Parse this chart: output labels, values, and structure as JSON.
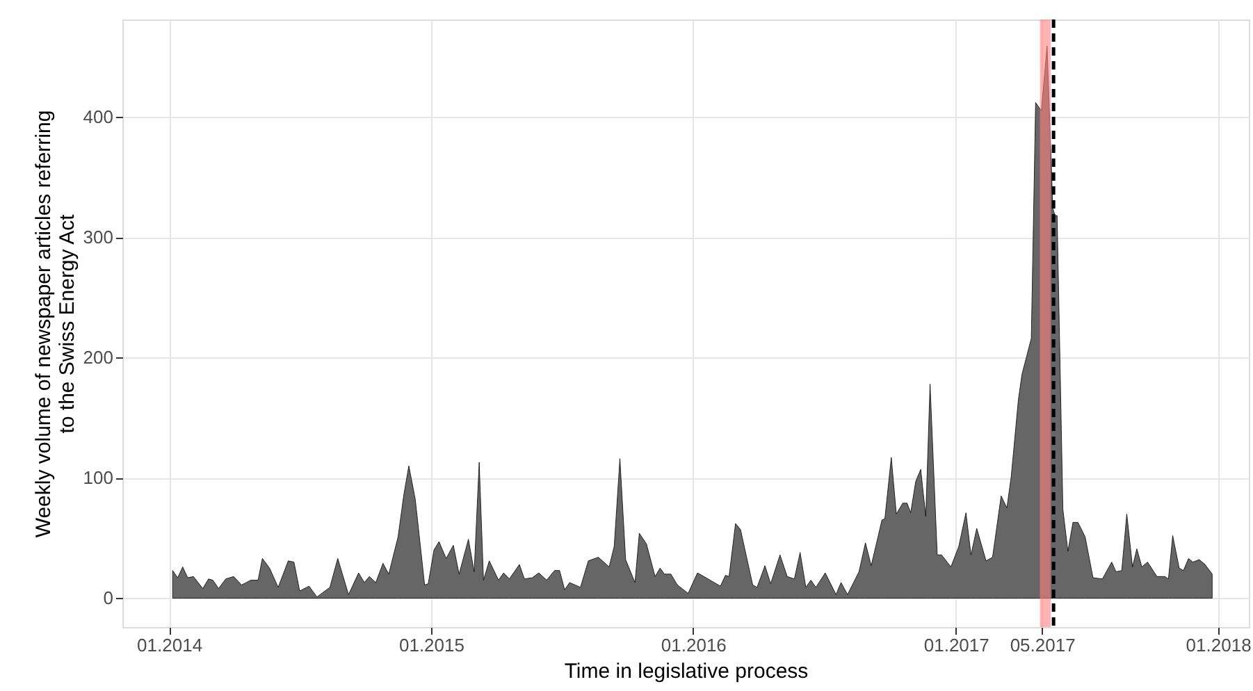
{
  "chart_data": {
    "type": "area",
    "xlabel": "Time in legislative process",
    "ylabel": "Weekly volume of newspaper articles referring\nto the Swiss Energy Act",
    "x": [
      "2014-01-06",
      "2014-01-13",
      "2014-01-20",
      "2014-01-27",
      "2014-02-04",
      "2014-02-17",
      "2014-02-25",
      "2014-03-03",
      "2014-03-11",
      "2014-03-21",
      "2014-04-01",
      "2014-04-12",
      "2014-04-25",
      "2014-05-05",
      "2014-05-11",
      "2014-05-21",
      "2014-06-02",
      "2014-06-16",
      "2014-06-24",
      "2014-07-02",
      "2014-07-15",
      "2014-07-26",
      "2014-08-13",
      "2014-08-24",
      "2014-09-08",
      "2014-09-22",
      "2014-09-30",
      "2014-10-07",
      "2014-10-16",
      "2014-10-26",
      "2014-11-03",
      "2014-11-16",
      "2014-11-24",
      "2014-12-01",
      "2014-12-10",
      "2014-12-23",
      "2014-12-28",
      "2015-01-05",
      "2015-01-12",
      "2015-01-22",
      "2015-02-01",
      "2015-02-09",
      "2015-02-22",
      "2015-03-02",
      "2015-03-09",
      "2015-03-15",
      "2015-03-23",
      "2015-04-05",
      "2015-04-12",
      "2015-04-20",
      "2015-05-04",
      "2015-05-11",
      "2015-05-22",
      "2015-05-31",
      "2015-06-11",
      "2015-06-22",
      "2015-06-29",
      "2015-07-06",
      "2015-07-13",
      "2015-07-28",
      "2015-08-08",
      "2015-08-22",
      "2015-09-06",
      "2015-09-13",
      "2015-09-21",
      "2015-09-29",
      "2015-10-12",
      "2015-10-18",
      "2015-10-28",
      "2015-11-09",
      "2015-11-16",
      "2015-11-22",
      "2015-12-01",
      "2015-12-10",
      "2015-12-25",
      "2016-01-07",
      "2016-01-16",
      "2016-02-08",
      "2016-02-15",
      "2016-02-20",
      "2016-02-29",
      "2016-03-07",
      "2016-03-24",
      "2016-03-30",
      "2016-04-10",
      "2016-04-18",
      "2016-05-01",
      "2016-05-11",
      "2016-05-21",
      "2016-05-29",
      "2016-06-06",
      "2016-06-13",
      "2016-06-20",
      "2016-07-03",
      "2016-07-18",
      "2016-07-25",
      "2016-08-03",
      "2016-08-19",
      "2016-08-28",
      "2016-09-05",
      "2016-09-20",
      "2016-09-24",
      "2016-10-03",
      "2016-10-10",
      "2016-10-19",
      "2016-10-25",
      "2016-10-30",
      "2016-11-06",
      "2016-11-13",
      "2016-11-20",
      "2016-11-26",
      "2016-12-06",
      "2016-12-12",
      "2016-12-25",
      "2017-01-05",
      "2017-01-15",
      "2017-01-22",
      "2017-01-30",
      "2017-02-12",
      "2017-02-21",
      "2017-03-05",
      "2017-03-13",
      "2017-03-19",
      "2017-03-29",
      "2017-04-03",
      "2017-04-16",
      "2017-04-22",
      "2017-04-30",
      "2017-05-08",
      "2017-05-16",
      "2017-05-19",
      "2017-05-22",
      "2017-05-30",
      "2017-06-06",
      "2017-06-13",
      "2017-06-20",
      "2017-06-30",
      "2017-07-11",
      "2017-07-24",
      "2017-08-06",
      "2017-08-12",
      "2017-08-20",
      "2017-08-27",
      "2017-09-04",
      "2017-09-10",
      "2017-09-17",
      "2017-09-25",
      "2017-10-08",
      "2017-10-19",
      "2017-10-24",
      "2017-10-30",
      "2017-11-08",
      "2017-11-14",
      "2017-11-21",
      "2017-11-27",
      "2017-12-06",
      "2017-12-14",
      "2017-12-24"
    ],
    "series": [
      {
        "color": "#666666",
        "values": [
          23,
          17,
          26,
          17,
          18,
          8,
          16,
          15,
          8,
          16,
          18,
          11,
          15,
          15,
          33,
          25,
          9,
          31,
          30,
          6,
          10,
          1,
          9,
          33,
          3,
          21,
          13,
          18,
          13,
          29,
          20,
          51,
          86,
          110,
          82,
          11,
          12,
          40,
          47,
          33,
          44,
          20,
          49,
          22,
          113,
          15,
          31,
          15,
          21,
          16,
          28,
          16,
          17,
          21,
          15,
          23,
          23,
          7,
          13,
          9,
          31,
          34,
          26,
          43,
          116,
          32,
          13,
          54,
          45,
          18,
          25,
          20,
          20,
          11,
          4,
          21,
          18,
          10,
          19,
          18,
          62,
          57,
          11,
          9,
          27,
          12,
          36,
          18,
          16,
          38,
          9,
          15,
          9,
          21,
          3,
          13,
          3,
          22,
          46,
          27,
          65,
          66,
          117,
          70,
          79,
          79,
          71,
          97,
          107,
          68,
          178,
          36,
          36,
          26,
          43,
          71,
          36,
          58,
          31,
          34,
          85,
          75,
          101,
          165,
          186,
          216,
          412,
          405,
          459,
          324,
          318,
          318,
          74,
          39,
          63,
          63,
          51,
          17,
          16,
          30,
          22,
          23,
          70,
          26,
          41,
          26,
          30,
          18,
          18,
          16,
          52,
          25,
          23,
          33,
          30,
          32,
          28,
          20
        ]
      }
    ],
    "xlim": [
      "2013-10-28",
      "2018-02-13"
    ],
    "xticks": [
      {
        "value": "2014-01-01",
        "label": "01.2014"
      },
      {
        "value": "2015-01-01",
        "label": "01.2015"
      },
      {
        "value": "2016-01-01",
        "label": "01.2016"
      },
      {
        "value": "2017-01-01",
        "label": "01.2017"
      },
      {
        "value": "2017-05-01",
        "label": "05.2017"
      },
      {
        "value": "2018-01-01",
        "label": "01.2018"
      }
    ],
    "ylim": [
      -24,
      481
    ],
    "yticks": [
      0,
      100,
      200,
      300,
      400
    ],
    "bands": [
      {
        "axis": "x",
        "from": "2017-04-28",
        "to": "2017-05-13",
        "color": "#ff8080"
      }
    ],
    "ref_lines": [
      {
        "axis": "x",
        "value": "2017-05-17",
        "color": "#000000",
        "line_style": "dashed"
      }
    ],
    "grid": true
  }
}
